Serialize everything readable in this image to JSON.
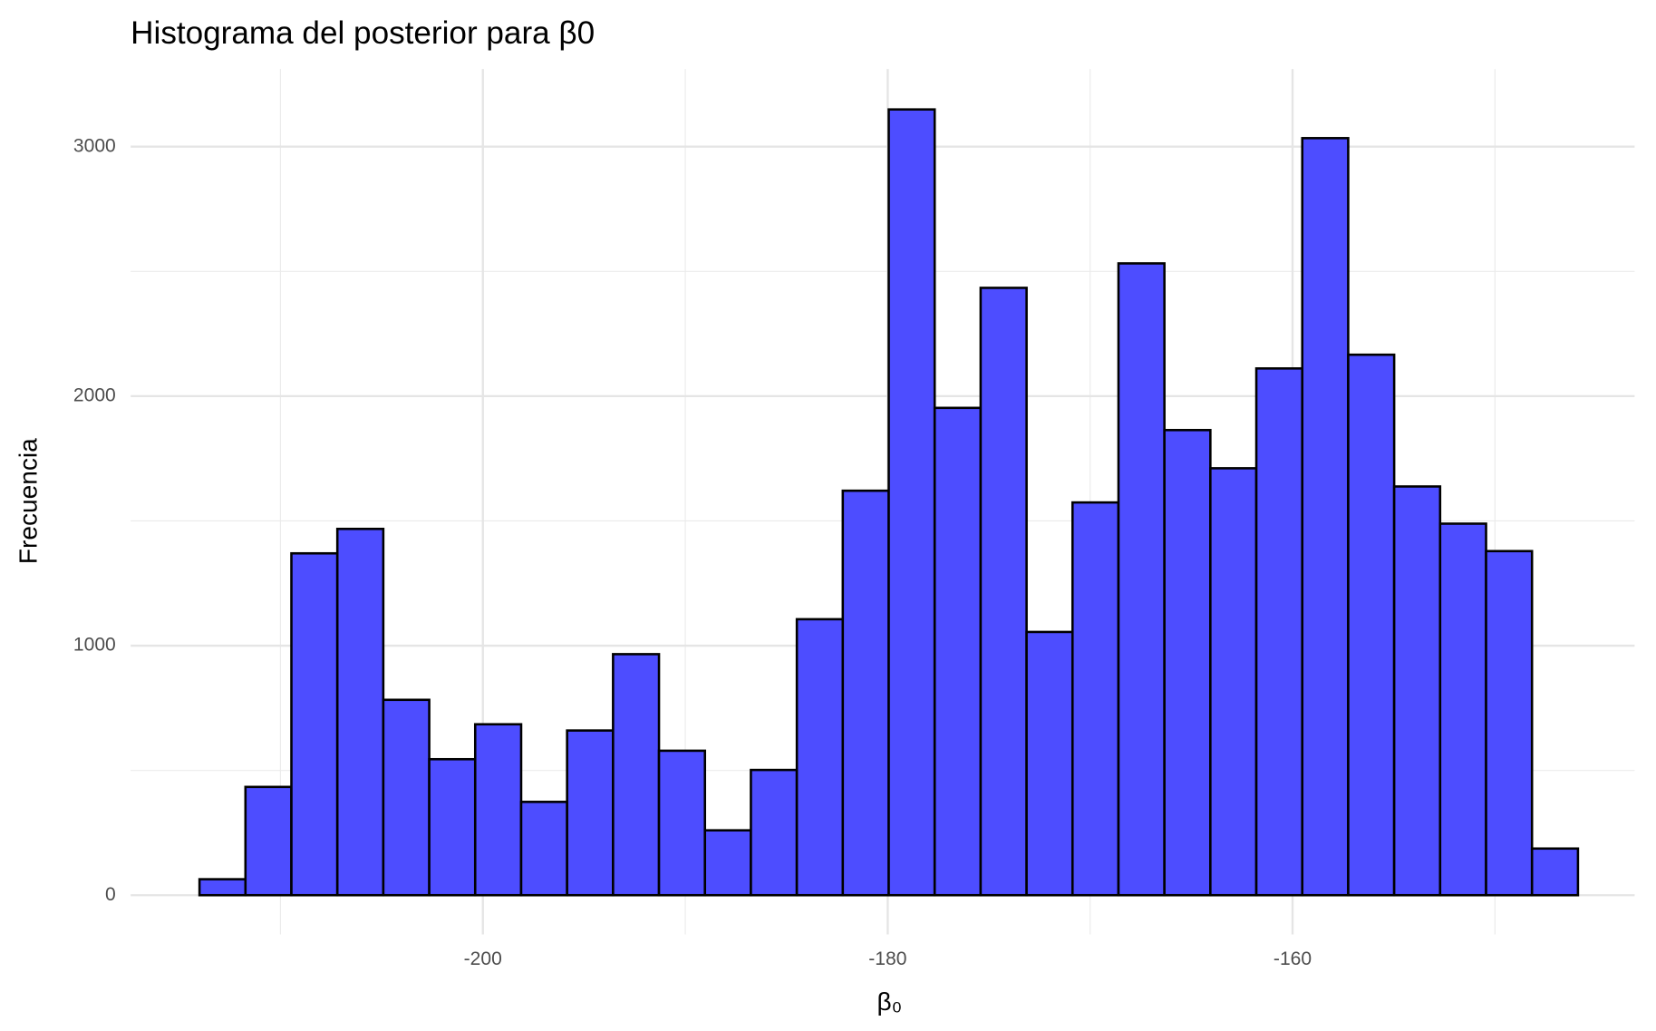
{
  "chart_data": {
    "type": "histogram",
    "title": "Histograma del posterior para β0",
    "xlabel": "β₀",
    "ylabel": "Frecuencia",
    "bins": [
      -214,
      -211.73,
      -209.46,
      -207.19,
      -204.92,
      -202.65,
      -200.38,
      -198.11,
      -195.84,
      -193.57,
      -191.3,
      -189.03,
      -186.76,
      -184.49,
      -182.22,
      -179.95,
      -177.68,
      -175.41,
      -173.14,
      -170.87,
      -168.6,
      -166.33,
      -164.06,
      -161.79,
      -159.52,
      -157.25,
      -154.98,
      -152.71,
      -150.44,
      -148.17,
      -145.9
    ],
    "values": [
      64,
      434,
      1370,
      1468,
      783,
      545,
      685,
      374,
      660,
      966,
      579,
      260,
      502,
      1106,
      1621,
      3149,
      1953,
      2434,
      1055,
      1574,
      2532,
      1864,
      1711,
      2111,
      3034,
      2166,
      1638,
      1489,
      1379,
      187
    ],
    "color": "#4D4DFF",
    "edgecolor": "#000000",
    "xlim": [
      -217.4,
      -143.1
    ],
    "ylim": [
      -157,
      3311
    ],
    "xticks": [
      -200,
      -180,
      -160
    ],
    "yticks": [
      0,
      1000,
      2000,
      3000
    ],
    "xminor": [
      -210,
      -190,
      -170,
      -150
    ],
    "yminor": [
      500,
      1500,
      2500
    ],
    "grid": true
  }
}
